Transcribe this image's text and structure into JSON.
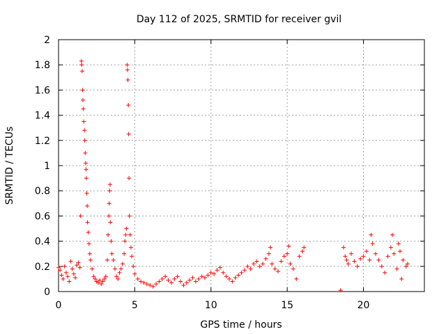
{
  "chart_data": {
    "type": "scatter",
    "title": "Day 112 of 2025, SRMTID for receiver gvil",
    "xlabel": "GPS time / hours",
    "ylabel": "SRMTID / TECUs",
    "xlim": [
      0,
      24
    ],
    "ylim": [
      0,
      2
    ],
    "xticks": [
      0,
      5,
      10,
      15,
      20
    ],
    "xtick_labels": [
      "0",
      "5",
      "10",
      "15",
      "20"
    ],
    "yticks": [
      0,
      0.2,
      0.4,
      0.6,
      0.8,
      1,
      1.2,
      1.4,
      1.6,
      1.8,
      2
    ],
    "ytick_labels": [
      "0",
      "0.2",
      "0.4",
      "0.6",
      "0.8",
      "1",
      "1.2",
      "1.4",
      "1.6",
      "1.8",
      "2"
    ],
    "grid": true,
    "marker": "plus",
    "color": "#ff0000",
    "series": [
      {
        "name": "SRMTID",
        "points": [
          [
            0.0,
            0.19
          ],
          [
            0.1,
            0.17
          ],
          [
            0.2,
            0.13
          ],
          [
            0.3,
            0.1
          ],
          [
            0.4,
            0.2
          ],
          [
            0.5,
            0.15
          ],
          [
            0.6,
            0.12
          ],
          [
            0.7,
            0.08
          ],
          [
            0.8,
            0.24
          ],
          [
            0.9,
            0.18
          ],
          [
            1.0,
            0.14
          ],
          [
            1.1,
            0.11
          ],
          [
            1.2,
            0.21
          ],
          [
            1.3,
            0.23
          ],
          [
            1.4,
            0.19
          ],
          [
            1.45,
            0.6
          ],
          [
            1.5,
            1.83
          ],
          [
            1.52,
            1.8
          ],
          [
            1.55,
            1.75
          ],
          [
            1.58,
            1.6
          ],
          [
            1.6,
            1.52
          ],
          [
            1.62,
            1.45
          ],
          [
            1.65,
            1.35
          ],
          [
            1.7,
            1.28
          ],
          [
            1.72,
            1.2
          ],
          [
            1.75,
            1.1
          ],
          [
            1.78,
            1.02
          ],
          [
            1.8,
            0.97
          ],
          [
            1.82,
            0.9
          ],
          [
            1.85,
            0.78
          ],
          [
            1.88,
            0.68
          ],
          [
            1.9,
            0.55
          ],
          [
            1.95,
            0.47
          ],
          [
            2.0,
            0.38
          ],
          [
            2.05,
            0.3
          ],
          [
            2.1,
            0.25
          ],
          [
            2.2,
            0.18
          ],
          [
            2.3,
            0.12
          ],
          [
            2.4,
            0.1
          ],
          [
            2.5,
            0.08
          ],
          [
            2.6,
            0.07
          ],
          [
            2.7,
            0.09
          ],
          [
            2.8,
            0.06
          ],
          [
            2.9,
            0.08
          ],
          [
            3.0,
            0.1
          ],
          [
            3.1,
            0.12
          ],
          [
            3.2,
            0.25
          ],
          [
            3.25,
            0.45
          ],
          [
            3.3,
            0.6
          ],
          [
            3.32,
            0.7
          ],
          [
            3.35,
            0.8
          ],
          [
            3.38,
            0.85
          ],
          [
            3.4,
            0.55
          ],
          [
            3.45,
            0.4
          ],
          [
            3.5,
            0.3
          ],
          [
            3.6,
            0.25
          ],
          [
            3.7,
            0.18
          ],
          [
            3.8,
            0.12
          ],
          [
            3.9,
            0.1
          ],
          [
            4.0,
            0.15
          ],
          [
            4.1,
            0.18
          ],
          [
            4.2,
            0.22
          ],
          [
            4.3,
            0.3
          ],
          [
            4.35,
            0.4
          ],
          [
            4.4,
            0.45
          ],
          [
            4.45,
            0.5
          ],
          [
            4.5,
            1.8
          ],
          [
            4.52,
            1.76
          ],
          [
            4.55,
            1.68
          ],
          [
            4.58,
            1.48
          ],
          [
            4.6,
            1.25
          ],
          [
            4.62,
            0.9
          ],
          [
            4.65,
            0.6
          ],
          [
            4.7,
            0.45
          ],
          [
            4.75,
            0.35
          ],
          [
            4.8,
            0.28
          ],
          [
            4.9,
            0.2
          ],
          [
            5.0,
            0.14
          ],
          [
            5.2,
            0.1
          ],
          [
            5.4,
            0.08
          ],
          [
            5.6,
            0.07
          ],
          [
            5.8,
            0.06
          ],
          [
            6.0,
            0.05
          ],
          [
            6.2,
            0.04
          ],
          [
            6.4,
            0.06
          ],
          [
            6.6,
            0.08
          ],
          [
            6.8,
            0.1
          ],
          [
            7.0,
            0.12
          ],
          [
            7.2,
            0.09
          ],
          [
            7.4,
            0.07
          ],
          [
            7.6,
            0.1
          ],
          [
            7.8,
            0.12
          ],
          [
            8.0,
            0.08
          ],
          [
            8.2,
            0.05
          ],
          [
            8.4,
            0.07
          ],
          [
            8.6,
            0.09
          ],
          [
            8.8,
            0.11
          ],
          [
            9.0,
            0.08
          ],
          [
            9.2,
            0.1
          ],
          [
            9.4,
            0.12
          ],
          [
            9.6,
            0.11
          ],
          [
            9.8,
            0.13
          ],
          [
            10.0,
            0.15
          ],
          [
            10.2,
            0.14
          ],
          [
            10.4,
            0.17
          ],
          [
            10.6,
            0.19
          ],
          [
            10.8,
            0.15
          ],
          [
            11.0,
            0.12
          ],
          [
            11.2,
            0.1
          ],
          [
            11.4,
            0.08
          ],
          [
            11.6,
            0.11
          ],
          [
            11.8,
            0.13
          ],
          [
            12.0,
            0.15
          ],
          [
            12.2,
            0.17
          ],
          [
            12.4,
            0.2
          ],
          [
            12.6,
            0.18
          ],
          [
            12.8,
            0.22
          ],
          [
            13.0,
            0.24
          ],
          [
            13.2,
            0.2
          ],
          [
            13.4,
            0.22
          ],
          [
            13.6,
            0.26
          ],
          [
            13.8,
            0.3
          ],
          [
            13.9,
            0.35
          ],
          [
            14.0,
            0.22
          ],
          [
            14.2,
            0.18
          ],
          [
            14.4,
            0.16
          ],
          [
            14.6,
            0.24
          ],
          [
            14.8,
            0.28
          ],
          [
            15.0,
            0.3
          ],
          [
            15.1,
            0.36
          ],
          [
            15.2,
            0.22
          ],
          [
            15.4,
            0.18
          ],
          [
            15.6,
            0.1
          ],
          [
            15.8,
            0.28
          ],
          [
            16.0,
            0.32
          ],
          [
            16.1,
            0.35
          ],
          [
            18.5,
            0.01
          ],
          [
            18.7,
            0.35
          ],
          [
            18.8,
            0.28
          ],
          [
            18.9,
            0.25
          ],
          [
            19.0,
            0.22
          ],
          [
            19.2,
            0.3
          ],
          [
            19.4,
            0.24
          ],
          [
            19.6,
            0.2
          ],
          [
            19.8,
            0.26
          ],
          [
            20.0,
            0.28
          ],
          [
            20.2,
            0.32
          ],
          [
            20.4,
            0.25
          ],
          [
            20.5,
            0.45
          ],
          [
            20.6,
            0.38
          ],
          [
            20.8,
            0.3
          ],
          [
            21.0,
            0.25
          ],
          [
            21.2,
            0.2
          ],
          [
            21.4,
            0.15
          ],
          [
            21.6,
            0.28
          ],
          [
            21.8,
            0.35
          ],
          [
            21.9,
            0.45
          ],
          [
            22.0,
            0.3
          ],
          [
            22.2,
            0.18
          ],
          [
            22.3,
            0.38
          ],
          [
            22.4,
            0.32
          ],
          [
            22.5,
            0.1
          ],
          [
            22.6,
            0.25
          ],
          [
            22.8,
            0.2
          ],
          [
            22.9,
            0.22
          ]
        ]
      }
    ]
  }
}
